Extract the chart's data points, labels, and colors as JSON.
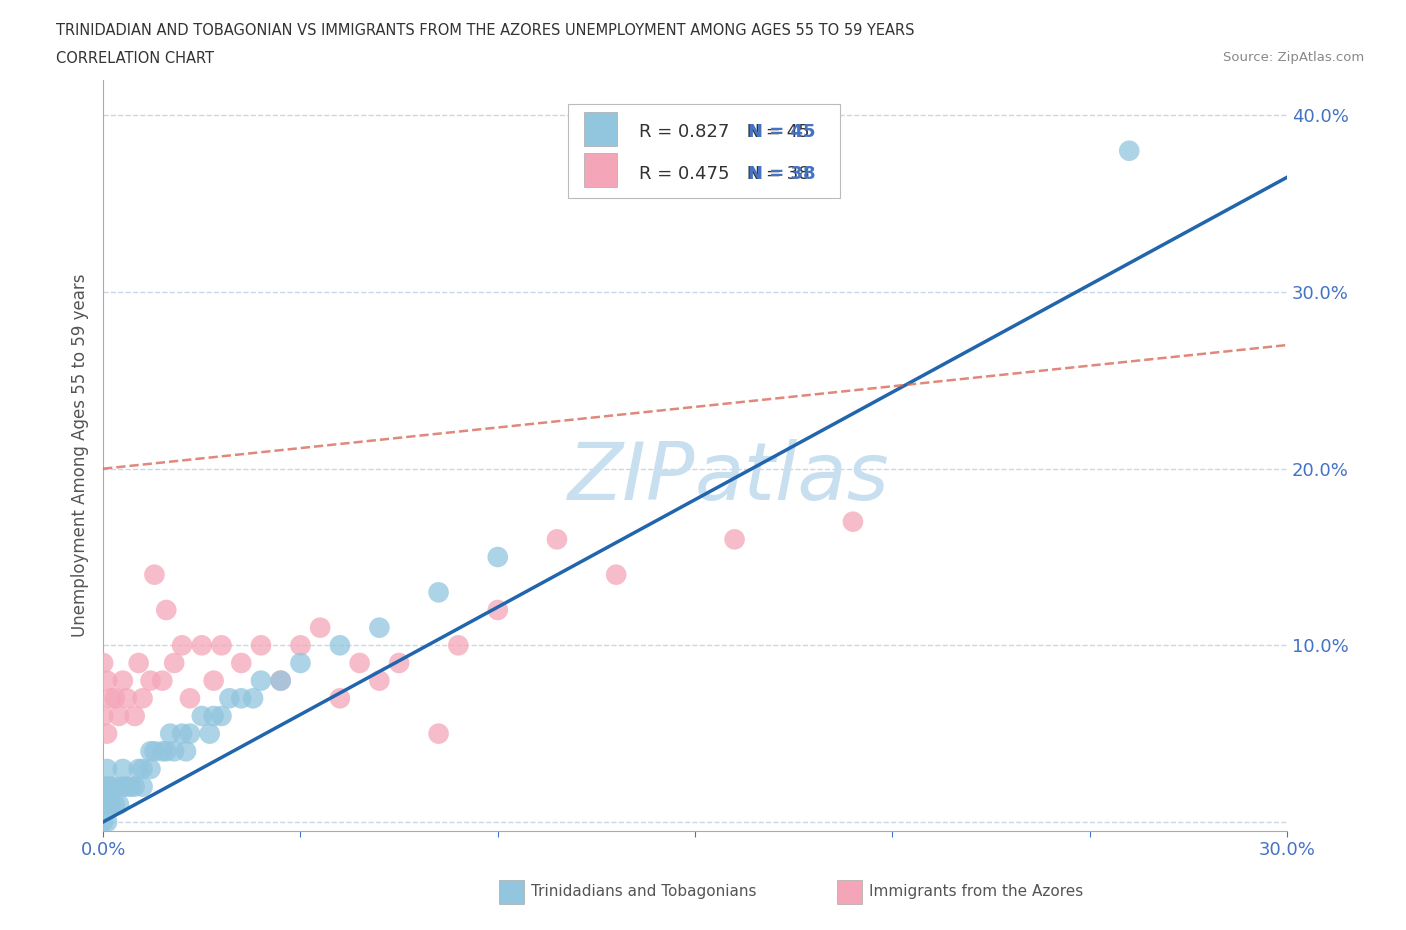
{
  "title_line1": "TRINIDADIAN AND TOBAGONIAN VS IMMIGRANTS FROM THE AZORES UNEMPLOYMENT AMONG AGES 55 TO 59 YEARS",
  "title_line2": "CORRELATION CHART",
  "source_text": "Source: ZipAtlas.com",
  "ylabel": "Unemployment Among Ages 55 to 59 years",
  "xlim": [
    0.0,
    0.3
  ],
  "ylim": [
    -0.005,
    0.42
  ],
  "blue_color": "#92c5de",
  "pink_color": "#f4a6b8",
  "blue_line_color": "#2166ac",
  "pink_line_color": "#d6604d",
  "watermark_color": "#c8dff0",
  "tick_label_color": "#4472c4",
  "background_color": "#ffffff",
  "grid_color": "#c8d8e8",
  "blue_scatter_x": [
    0.0,
    0.0,
    0.0,
    0.001,
    0.001,
    0.001,
    0.001,
    0.002,
    0.002,
    0.003,
    0.003,
    0.004,
    0.005,
    0.005,
    0.006,
    0.007,
    0.008,
    0.009,
    0.01,
    0.01,
    0.012,
    0.012,
    0.013,
    0.015,
    0.016,
    0.017,
    0.018,
    0.02,
    0.021,
    0.022,
    0.025,
    0.027,
    0.028,
    0.03,
    0.032,
    0.035,
    0.038,
    0.04,
    0.045,
    0.05,
    0.06,
    0.07,
    0.085,
    0.1,
    0.26
  ],
  "blue_scatter_y": [
    0.0,
    0.01,
    0.02,
    0.0,
    0.01,
    0.02,
    0.03,
    0.01,
    0.02,
    0.01,
    0.02,
    0.01,
    0.02,
    0.03,
    0.02,
    0.02,
    0.02,
    0.03,
    0.02,
    0.03,
    0.03,
    0.04,
    0.04,
    0.04,
    0.04,
    0.05,
    0.04,
    0.05,
    0.04,
    0.05,
    0.06,
    0.05,
    0.06,
    0.06,
    0.07,
    0.07,
    0.07,
    0.08,
    0.08,
    0.09,
    0.1,
    0.11,
    0.13,
    0.15,
    0.38
  ],
  "pink_scatter_x": [
    0.0,
    0.0,
    0.001,
    0.001,
    0.002,
    0.003,
    0.004,
    0.005,
    0.006,
    0.008,
    0.009,
    0.01,
    0.012,
    0.013,
    0.015,
    0.016,
    0.018,
    0.02,
    0.022,
    0.025,
    0.028,
    0.03,
    0.035,
    0.04,
    0.045,
    0.05,
    0.055,
    0.06,
    0.065,
    0.07,
    0.075,
    0.085,
    0.09,
    0.1,
    0.115,
    0.13,
    0.16,
    0.19
  ],
  "pink_scatter_y": [
    0.06,
    0.09,
    0.05,
    0.08,
    0.07,
    0.07,
    0.06,
    0.08,
    0.07,
    0.06,
    0.09,
    0.07,
    0.08,
    0.14,
    0.08,
    0.12,
    0.09,
    0.1,
    0.07,
    0.1,
    0.08,
    0.1,
    0.09,
    0.1,
    0.08,
    0.1,
    0.11,
    0.07,
    0.09,
    0.08,
    0.09,
    0.05,
    0.1,
    0.12,
    0.16,
    0.14,
    0.16,
    0.17
  ],
  "blue_line_x0": 0.0,
  "blue_line_y0": 0.0,
  "blue_line_x1": 0.3,
  "blue_line_y1": 0.365,
  "pink_line_x0": 0.0,
  "pink_line_y0": 0.2,
  "pink_line_x1": 0.3,
  "pink_line_y1": 0.27
}
